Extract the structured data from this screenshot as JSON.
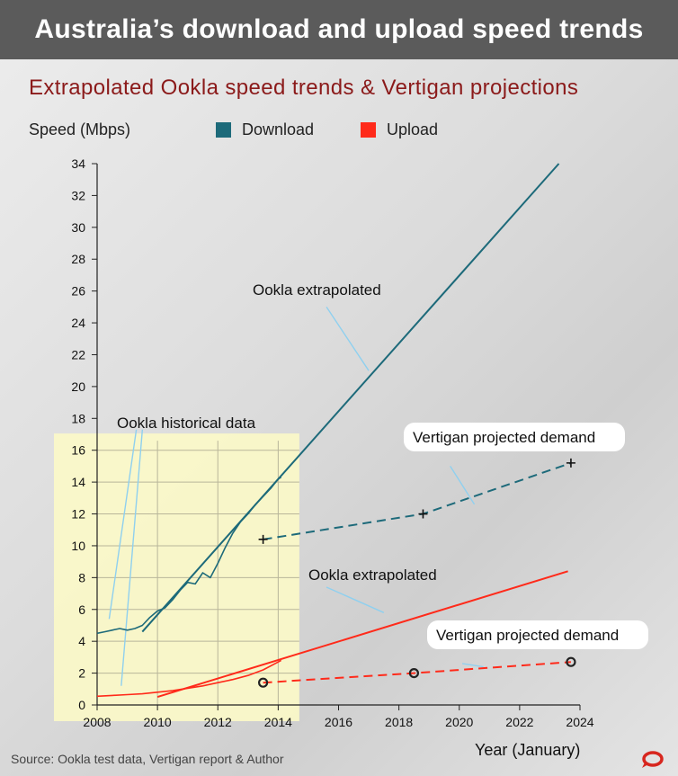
{
  "header": {
    "title": "Australia’s download and upload speed trends"
  },
  "chart_data": {
    "type": "line",
    "title": "Extrapolated Ookla speed trends & Vertigan projections",
    "ylabel": "Speed (Mbps)",
    "xlabel": "Year (January)",
    "xlim": [
      2008,
      2024
    ],
    "ylim": [
      0,
      34
    ],
    "xticks": [
      "2008",
      "2010",
      "2012",
      "2014",
      "2016",
      "2018",
      "2020",
      "2022",
      "2024"
    ],
    "yticks": [
      "0",
      "2",
      "4",
      "6",
      "8",
      "10",
      "12",
      "14",
      "16",
      "18",
      "20",
      "22",
      "24",
      "26",
      "28",
      "30",
      "32",
      "34"
    ],
    "grid": true,
    "legend_position": "top",
    "legend": [
      {
        "name": "Download",
        "color": "#1d6a7a"
      },
      {
        "name": "Upload",
        "color": "#ff2a1a"
      }
    ],
    "historical_region": {
      "x": [
        2008,
        2014.7
      ],
      "y": [
        0,
        16.6
      ],
      "color": "#fbf8c8"
    },
    "series": [
      {
        "name": "Download",
        "kind": "historical",
        "color": "#1d6a7a",
        "x": [
          2008.0,
          2008.25,
          2008.5,
          2008.75,
          2009.0,
          2009.25,
          2009.5,
          2009.75,
          2010.0,
          2010.25,
          2010.5,
          2010.75,
          2011.0,
          2011.25,
          2011.5,
          2011.75,
          2012.0,
          2012.25,
          2012.5,
          2012.75,
          2013.0,
          2013.25,
          2013.5,
          2013.75,
          2014.0,
          2014.1
        ],
        "y": [
          4.5,
          4.6,
          4.7,
          4.8,
          4.7,
          4.8,
          5.0,
          5.5,
          5.9,
          6.1,
          6.6,
          7.2,
          7.7,
          7.6,
          8.3,
          8.0,
          8.9,
          9.9,
          10.8,
          11.5,
          12.0,
          12.6,
          13.1,
          13.6,
          14.2,
          14.3
        ]
      },
      {
        "name": "Download",
        "kind": "ookla-extrapolated",
        "color": "#1d6a7a",
        "x": [
          2009.5,
          2023.3
        ],
        "y": [
          4.6,
          34.0
        ]
      },
      {
        "name": "Download",
        "kind": "vertigan-projected",
        "color": "#1d6a7a",
        "x": [
          2013.5,
          2018.8,
          2023.7
        ],
        "y": [
          10.4,
          12.0,
          15.2
        ]
      },
      {
        "name": "Upload",
        "kind": "historical",
        "color": "#ff2a1a",
        "x": [
          2008.0,
          2008.5,
          2009.0,
          2009.5,
          2010.0,
          2010.5,
          2011.0,
          2011.5,
          2012.0,
          2012.5,
          2013.0,
          2013.5,
          2014.0,
          2014.1
        ],
        "y": [
          0.55,
          0.6,
          0.65,
          0.7,
          0.8,
          0.9,
          1.05,
          1.2,
          1.4,
          1.6,
          1.85,
          2.2,
          2.7,
          2.8
        ]
      },
      {
        "name": "Upload",
        "kind": "ookla-extrapolated",
        "color": "#ff2a1a",
        "x": [
          2010.0,
          2023.6
        ],
        "y": [
          0.5,
          8.4
        ]
      },
      {
        "name": "Upload",
        "kind": "vertigan-projected",
        "color": "#ff2a1a",
        "x": [
          2013.5,
          2018.5,
          2023.7
        ],
        "y": [
          1.4,
          2.0,
          2.7
        ]
      }
    ],
    "annotations": [
      {
        "text": "Ookla historical data",
        "boxed": false
      },
      {
        "text": "Ookla extrapolated",
        "boxed": false
      },
      {
        "text": "Vertigan projected demand",
        "boxed": true
      },
      {
        "text": "Ookla extrapolated",
        "boxed": false
      },
      {
        "text": "Vertigan projected demand",
        "boxed": true
      }
    ]
  },
  "footer": {
    "source": "Source: Ookla test data, Vertigan report & Author",
    "logo": "conversation-logo-icon"
  }
}
